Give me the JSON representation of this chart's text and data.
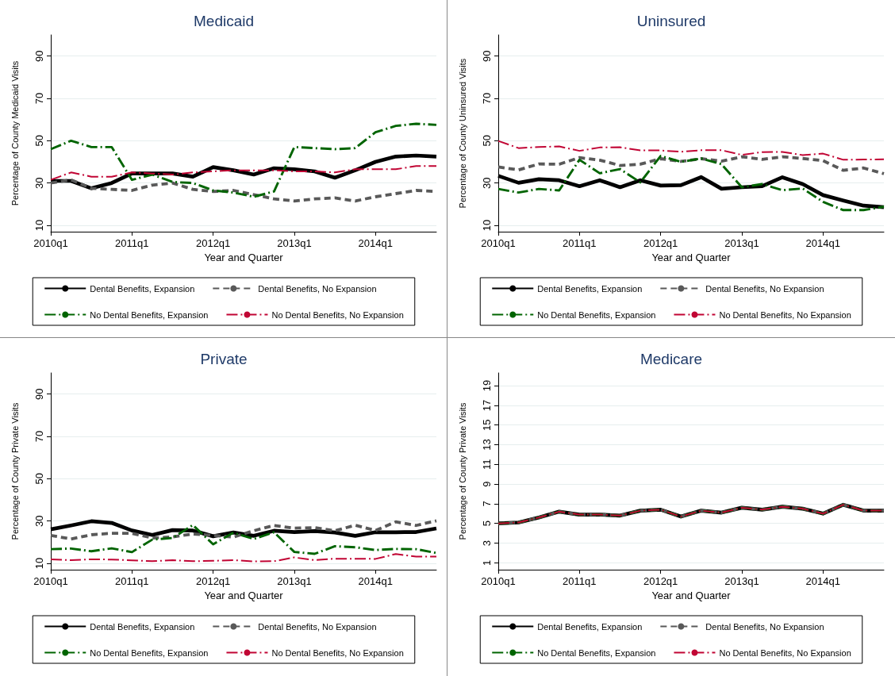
{
  "chart_data": [
    {
      "type": "line",
      "title": "Medicaid",
      "xlabel": "Year and Quarter",
      "ylabel": "Percentage of County Medicaid Visits",
      "categories": [
        "2010q1",
        null,
        null,
        null,
        "2011q1",
        null,
        null,
        null,
        "2012q1",
        null,
        null,
        null,
        "2013q1",
        null,
        null,
        null,
        "2014q1",
        null,
        null,
        null
      ],
      "ylim": [
        7,
        100
      ],
      "yticks": [
        10,
        30,
        50,
        70,
        90
      ],
      "grid": "y",
      "legend": "bottom",
      "series": [
        {
          "name": "Dental Benefits, Expansion",
          "color": "#000000",
          "line_style": "solid",
          "values": [
            31,
            31,
            27.5,
            30,
            34.5,
            34.5,
            34.5,
            33,
            37.5,
            36,
            34,
            37,
            36.5,
            35.5,
            32.5,
            36,
            40,
            42.5,
            43,
            42.5
          ]
        },
        {
          "name": "Dental Benefits, No Expansion",
          "color": "#595959",
          "line_style": "dashed",
          "values": [
            30,
            31.5,
            27.5,
            27,
            26.5,
            29,
            30,
            27,
            26,
            26.5,
            24.5,
            22.5,
            21.5,
            22.5,
            23,
            21.5,
            23.5,
            25,
            26.5,
            26
          ]
        },
        {
          "name": "No Dental Benefits, Expansion",
          "color": "#006400",
          "line_style": "dashdot",
          "values": [
            46,
            50,
            47,
            47,
            31.5,
            34,
            30.5,
            30,
            26.5,
            25.5,
            23.5,
            26,
            47,
            46.5,
            46,
            46.5,
            54,
            57,
            58,
            57.5
          ]
        },
        {
          "name": "No Dental Benefits, No Expansion",
          "color": "#c10534",
          "line_style": "dashdot",
          "values": [
            31.5,
            35,
            33,
            33,
            35,
            34.5,
            34,
            35,
            35.5,
            36,
            36,
            36,
            35.5,
            35.5,
            35,
            36.5,
            36.5,
            36.5,
            38,
            38
          ]
        }
      ]
    },
    {
      "type": "line",
      "title": "Uninsured",
      "xlabel": "Year and Quarter",
      "ylabel": "Percentage of County Uninsured Visits",
      "categories": [
        "2010q1",
        null,
        null,
        null,
        "2011q1",
        null,
        null,
        null,
        "2012q1",
        null,
        null,
        null,
        "2013q1",
        null,
        null,
        null,
        "2014q1",
        null,
        null,
        null
      ],
      "ylim": [
        7,
        100
      ],
      "yticks": [
        10,
        30,
        50,
        70,
        90
      ],
      "grid": "y",
      "legend": "bottom",
      "series": [
        {
          "name": "Dental Benefits, Expansion",
          "color": "#000000",
          "line_style": "solid",
          "values": [
            33.4,
            30.1,
            31.8,
            31.3,
            28.5,
            31.3,
            28,
            31.3,
            28.8,
            29,
            32.8,
            27.3,
            28,
            28.5,
            32.7,
            29.5,
            24.3,
            21.7,
            19.3,
            18.6
          ]
        },
        {
          "name": "Dental Benefits, No Expansion",
          "color": "#595959",
          "line_style": "dashed",
          "values": [
            37.6,
            36.2,
            39,
            38.9,
            42,
            40.8,
            38.3,
            38.9,
            41.5,
            40.2,
            41.5,
            40.3,
            42.4,
            41.2,
            42.4,
            41.6,
            40.6,
            36,
            37.1,
            34.4
          ]
        },
        {
          "name": "No Dental Benefits, Expansion",
          "color": "#006400",
          "line_style": "dashdot",
          "values": [
            27.2,
            25.5,
            27.2,
            26.5,
            41,
            34.6,
            36.6,
            30.3,
            42.8,
            40,
            41.6,
            38.9,
            28,
            29.5,
            26.6,
            27.4,
            21.1,
            17.2,
            17.2,
            18.8
          ]
        },
        {
          "name": "No Dental Benefits, No Expansion",
          "color": "#c10534",
          "line_style": "dashdot",
          "values": [
            49.9,
            46.5,
            47,
            47.3,
            45.2,
            46.8,
            46.9,
            45.4,
            45.4,
            44.8,
            45.5,
            45.5,
            43.3,
            44.6,
            44.7,
            43.2,
            43.9,
            41,
            41.1,
            41.2
          ]
        }
      ]
    },
    {
      "type": "line",
      "title": "Private",
      "xlabel": "Year and Quarter",
      "ylabel": "Percentage of County Private Visits",
      "categories": [
        "2010q1",
        null,
        null,
        null,
        "2011q1",
        null,
        null,
        null,
        "2012q1",
        null,
        null,
        null,
        "2013q1",
        null,
        null,
        null,
        "2014q1",
        null,
        null,
        null
      ],
      "ylim": [
        7,
        100
      ],
      "yticks": [
        10,
        30,
        50,
        70,
        90
      ],
      "grid": "y",
      "legend": "bottom",
      "series": [
        {
          "name": "Dental Benefits, Expansion",
          "color": "#000000",
          "line_style": "solid",
          "values": [
            26.1,
            27.9,
            29.9,
            29.1,
            25.5,
            23.4,
            25.7,
            25.5,
            22.8,
            24.6,
            23,
            25.4,
            24.8,
            25.2,
            24.6,
            23,
            24.7,
            24.7,
            24.8,
            26.5
          ]
        },
        {
          "name": "Dental Benefits, No Expansion",
          "color": "#595959",
          "line_style": "dashed",
          "values": [
            23.2,
            21.5,
            23.5,
            24.2,
            24.2,
            22,
            22.5,
            23.9,
            23.2,
            22.4,
            25.4,
            27.9,
            26.6,
            26.9,
            25.4,
            28,
            25.5,
            29.6,
            27.9,
            30.1
          ]
        },
        {
          "name": "No Dental Benefits, Expansion",
          "color": "#006400",
          "line_style": "dashdot",
          "values": [
            16.7,
            17,
            15.7,
            17.1,
            15.3,
            21.2,
            22,
            28.1,
            19,
            24.5,
            21.5,
            24.7,
            15.4,
            14.5,
            18.1,
            17.6,
            16.3,
            16.8,
            16.7,
            14.9
          ]
        },
        {
          "name": "No Dental Benefits, No Expansion",
          "color": "#c10534",
          "line_style": "dashdot",
          "values": [
            11.9,
            11.5,
            11.9,
            11.8,
            11.4,
            11,
            11.5,
            11,
            11.2,
            11.5,
            10.9,
            11,
            12.8,
            11.5,
            12.2,
            12.2,
            12.1,
            14.4,
            13.2,
            13.2
          ]
        }
      ]
    },
    {
      "type": "line",
      "title": "Medicare",
      "xlabel": "Year and Quarter",
      "ylabel": "Percentage of County Private Visits",
      "categories": [
        "2010q1",
        null,
        null,
        null,
        "2011q1",
        null,
        null,
        null,
        "2012q1",
        null,
        null,
        null,
        "2013q1",
        null,
        null,
        null,
        "2014q1",
        null,
        null,
        null
      ],
      "ylim": [
        0.3,
        20.3
      ],
      "yticks": [
        1,
        3,
        5,
        7,
        9,
        11,
        13,
        15,
        17,
        19
      ],
      "grid": "y",
      "legend": "bottom",
      "series": [
        {
          "name": "Dental Benefits, Expansion",
          "color": "#000000",
          "line_style": "solid",
          "values": [
            5.0,
            5.1,
            5.6,
            6.2,
            5.9,
            5.9,
            5.8,
            6.3,
            6.4,
            5.7,
            6.3,
            6.1,
            6.6,
            6.4,
            6.7,
            6.5,
            6.0,
            6.9,
            6.3,
            6.3
          ]
        },
        {
          "name": "Dental Benefits, No Expansion",
          "color": "#595959",
          "line_style": "dashed",
          "values": [
            5.0,
            5.1,
            5.6,
            6.2,
            5.9,
            5.9,
            5.8,
            6.3,
            6.4,
            5.7,
            6.3,
            6.1,
            6.6,
            6.4,
            6.7,
            6.5,
            6.0,
            6.9,
            6.3,
            6.3
          ]
        },
        {
          "name": "No Dental Benefits, Expansion",
          "color": "#006400",
          "line_style": "dashdot",
          "values": [
            5.0,
            5.1,
            5.6,
            6.2,
            5.9,
            5.9,
            5.8,
            6.3,
            6.4,
            5.7,
            6.3,
            6.1,
            6.6,
            6.4,
            6.7,
            6.5,
            6.0,
            6.9,
            6.3,
            6.3
          ]
        },
        {
          "name": "No Dental Benefits, No Expansion",
          "color": "#c10534",
          "line_style": "dashdot",
          "values": [
            5.0,
            5.1,
            5.6,
            6.2,
            5.9,
            5.9,
            5.8,
            6.3,
            6.4,
            5.7,
            6.3,
            6.1,
            6.6,
            6.4,
            6.7,
            6.5,
            6.0,
            6.9,
            6.3,
            6.3
          ]
        }
      ]
    }
  ]
}
